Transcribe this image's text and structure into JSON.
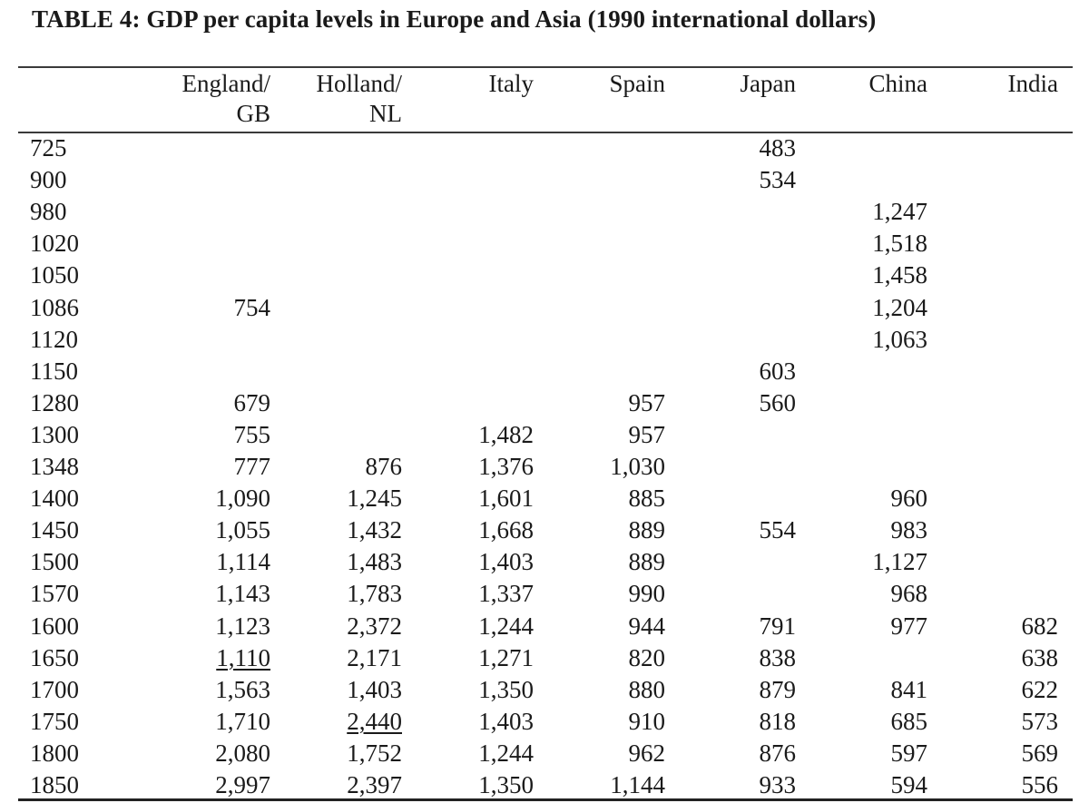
{
  "title": "TABLE 4: GDP per capita levels in Europe and Asia (1990 international dollars)",
  "columns": [
    {
      "line1": "England/",
      "line2": "GB"
    },
    {
      "line1": "Holland/",
      "line2": "NL"
    },
    {
      "line1": "Italy",
      "line2": ""
    },
    {
      "line1": "Spain",
      "line2": ""
    },
    {
      "line1": "Japan",
      "line2": ""
    },
    {
      "line1": "China",
      "line2": ""
    },
    {
      "line1": "India",
      "line2": ""
    }
  ],
  "rows": [
    {
      "year": "725",
      "values": [
        "",
        "",
        "",
        "",
        "483",
        "",
        ""
      ]
    },
    {
      "year": "900",
      "values": [
        "",
        "",
        "",
        "",
        "534",
        "",
        ""
      ]
    },
    {
      "year": "980",
      "values": [
        "",
        "",
        "",
        "",
        "",
        "1,247",
        ""
      ]
    },
    {
      "year": "1020",
      "values": [
        "",
        "",
        "",
        "",
        "",
        "1,518",
        ""
      ]
    },
    {
      "year": "1050",
      "values": [
        "",
        "",
        "",
        "",
        "",
        "1,458",
        ""
      ]
    },
    {
      "year": "1086",
      "values": [
        "754",
        "",
        "",
        "",
        "",
        "1,204",
        ""
      ]
    },
    {
      "year": "1120",
      "values": [
        "",
        "",
        "",
        "",
        "",
        "1,063",
        ""
      ]
    },
    {
      "year": "1150",
      "values": [
        "",
        "",
        "",
        "",
        "603",
        "",
        ""
      ]
    },
    {
      "year": "1280",
      "values": [
        "679",
        "",
        "",
        "957",
        "560",
        "",
        ""
      ]
    },
    {
      "year": "1300",
      "values": [
        "755",
        "",
        "1,482",
        "957",
        "",
        "",
        ""
      ]
    },
    {
      "year": "1348",
      "values": [
        "777",
        "876",
        "1,376",
        "1,030",
        "",
        "",
        ""
      ]
    },
    {
      "year": "1400",
      "values": [
        "1,090",
        "1,245",
        "1,601",
        "885",
        "",
        "960",
        ""
      ]
    },
    {
      "year": "1450",
      "values": [
        "1,055",
        "1,432",
        "1,668",
        "889",
        "554",
        "983",
        ""
      ]
    },
    {
      "year": "1500",
      "values": [
        "1,114",
        "1,483",
        "1,403",
        "889",
        "",
        "1,127",
        ""
      ]
    },
    {
      "year": "1570",
      "values": [
        "1,143",
        "1,783",
        "1,337",
        "990",
        "",
        "968",
        ""
      ]
    },
    {
      "year": "1600",
      "values": [
        "1,123",
        "2,372",
        "1,244",
        "944",
        "791",
        "977",
        "682"
      ]
    },
    {
      "year": "1650",
      "values": [
        "1,110",
        "2,171",
        "1,271",
        "820",
        "838",
        "",
        "638"
      ],
      "underline": [
        0
      ]
    },
    {
      "year": "1700",
      "values": [
        "1,563",
        "1,403",
        "1,350",
        "880",
        "879",
        "841",
        "622"
      ]
    },
    {
      "year": "1750",
      "values": [
        "1,710",
        "2,440",
        "1,403",
        "910",
        "818",
        "685",
        "573"
      ],
      "underline": [
        1
      ]
    },
    {
      "year": "1800",
      "values": [
        "2,080",
        "1,752",
        "1,244",
        "962",
        "876",
        "597",
        "569"
      ]
    },
    {
      "year": "1850",
      "values": [
        "2,997",
        "2,397",
        "1,350",
        "1,144",
        "933",
        "594",
        "556"
      ]
    }
  ]
}
